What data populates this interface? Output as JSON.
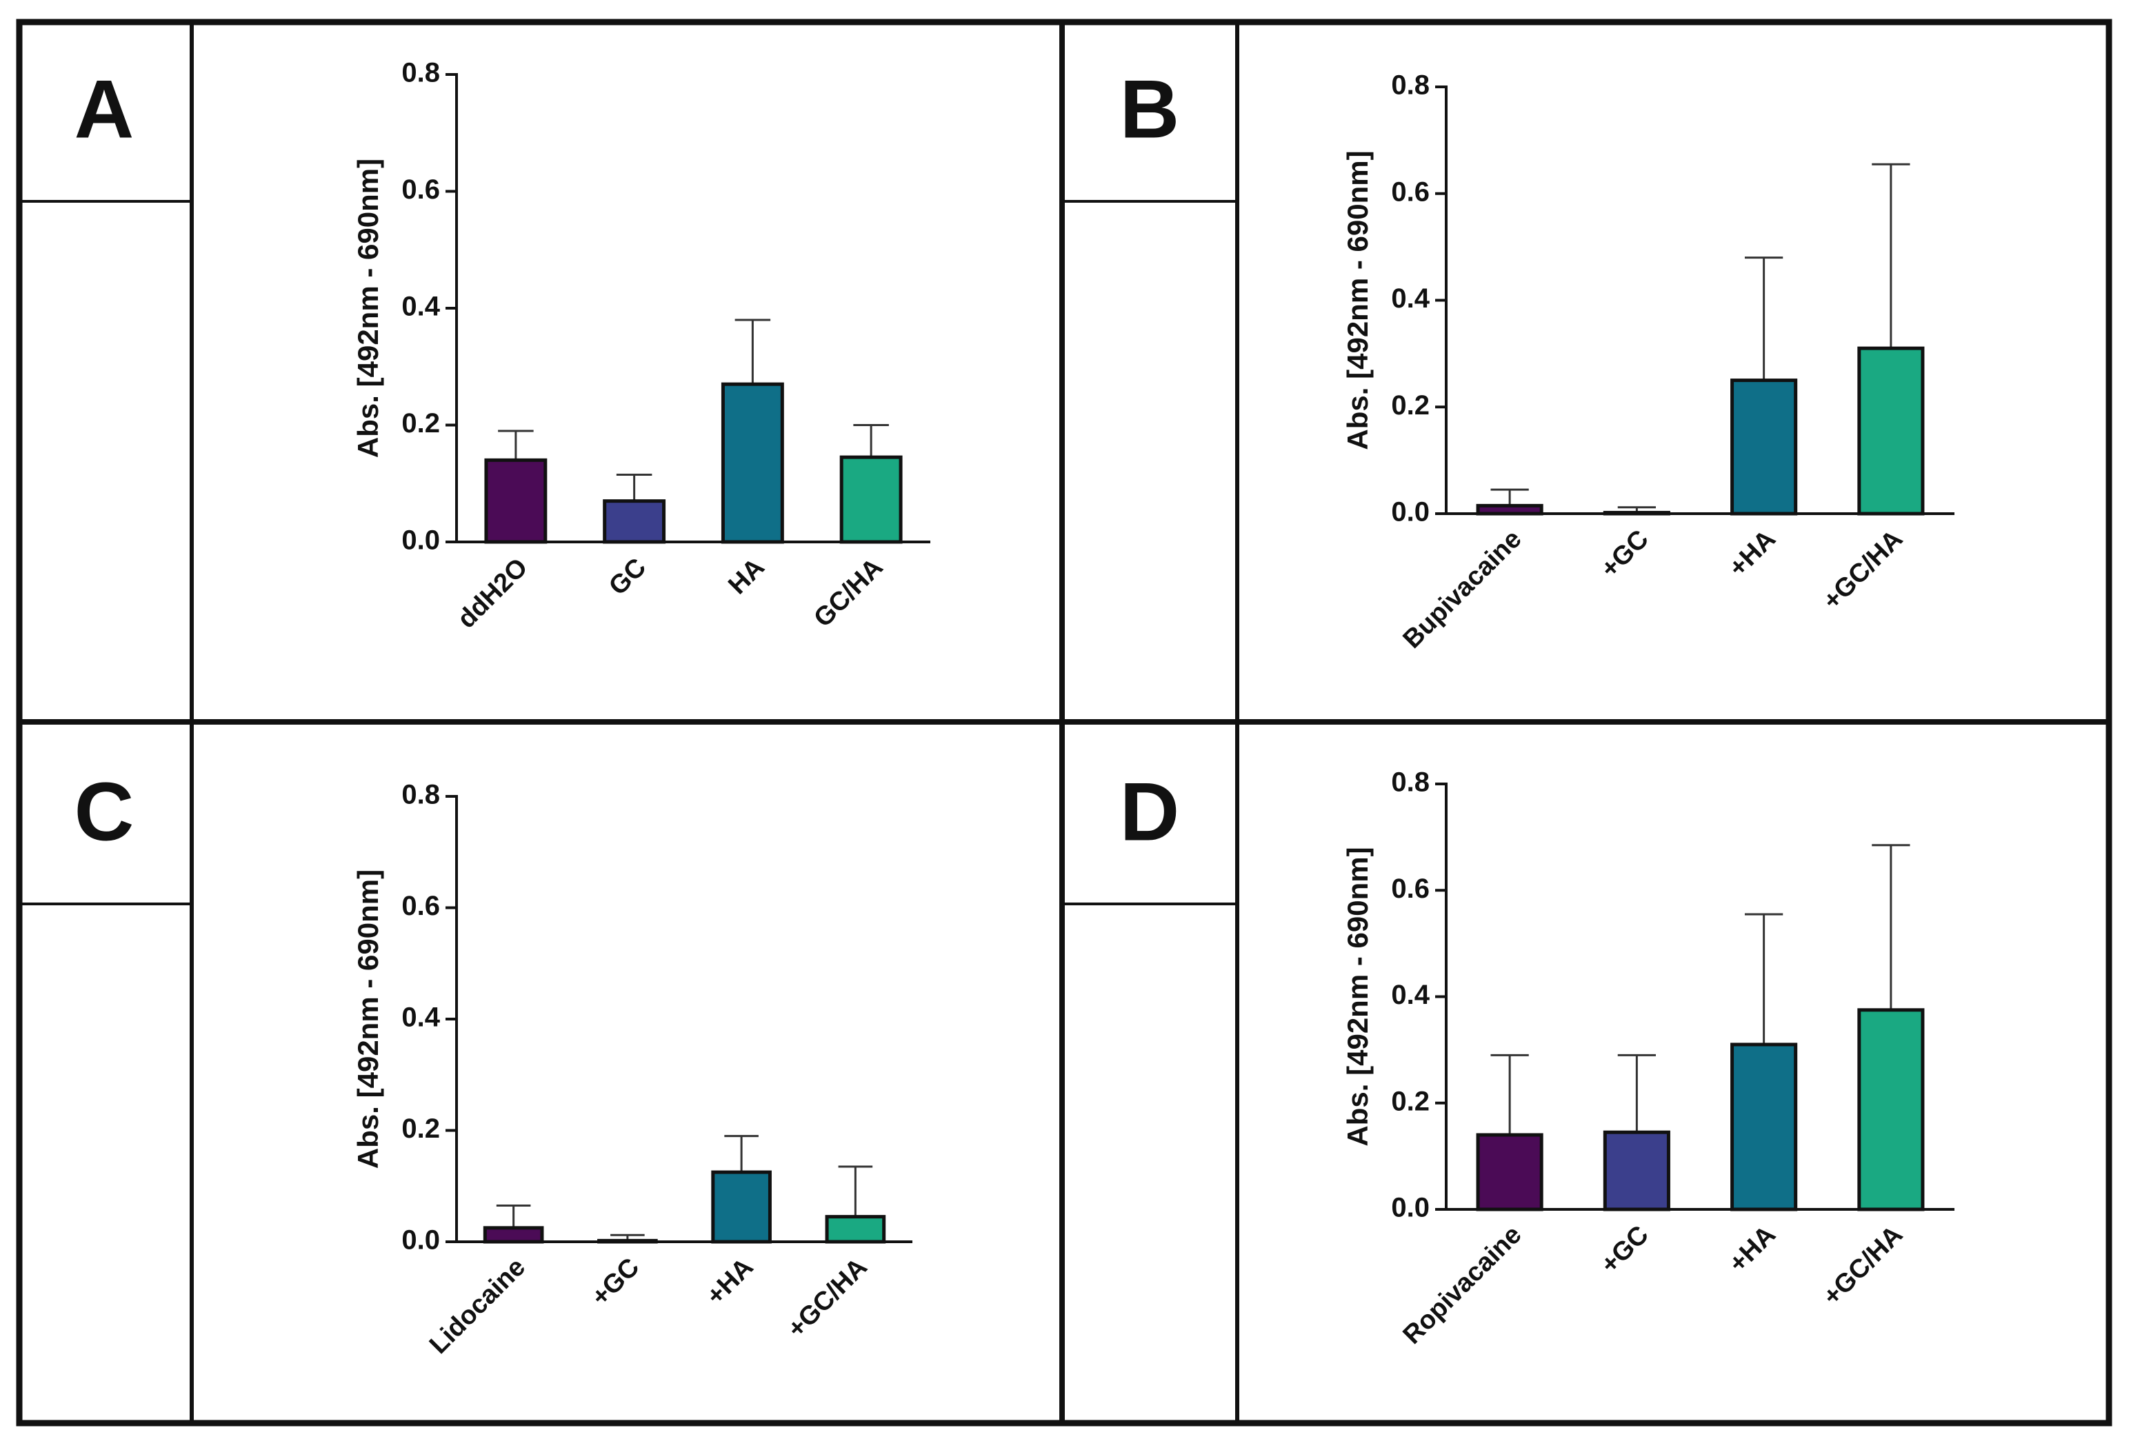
{
  "chart_data": [
    {
      "type": "bar",
      "panel": "A",
      "ylabel": "Abs. [492nm - 690nm]",
      "categories": [
        "ddH2O",
        "GC",
        "HA",
        "GC/HA"
      ],
      "values": [
        0.14,
        0.07,
        0.27,
        0.145
      ],
      "errors": [
        0.05,
        0.045,
        0.11,
        0.055
      ],
      "colors": [
        "#4b0b56",
        "#3b3f8c",
        "#0f6f88",
        "#1aa982"
      ],
      "ylim": [
        0,
        0.8
      ],
      "yticks": [
        {
          "value": 0,
          "label": "0.0"
        },
        {
          "value": 0.2,
          "label": "0.2"
        },
        {
          "value": 0.4,
          "label": "0.4"
        },
        {
          "value": 0.6,
          "label": "0.6"
        },
        {
          "value": 0.8,
          "label": "0.8"
        }
      ]
    },
    {
      "type": "bar",
      "panel": "B",
      "ylabel": "Abs. [492nm - 690nm]",
      "categories": [
        "Bupivacaine",
        "+GC",
        "+HA",
        "+GC/HA"
      ],
      "values": [
        0.015,
        0.002,
        0.25,
        0.31
      ],
      "errors": [
        0.03,
        0.01,
        0.23,
        0.345
      ],
      "colors": [
        "#4b0b56",
        "#3b3f8c",
        "#0f6f88",
        "#1aa982"
      ],
      "ylim": [
        0,
        0.8
      ],
      "yticks": [
        {
          "value": 0,
          "label": "0.0"
        },
        {
          "value": 0.2,
          "label": "0.2"
        },
        {
          "value": 0.4,
          "label": "0.4"
        },
        {
          "value": 0.6,
          "label": "0.6"
        },
        {
          "value": 0.8,
          "label": "0.8"
        }
      ]
    },
    {
      "type": "bar",
      "panel": "C",
      "ylabel": "Abs. [492nm - 690nm]",
      "categories": [
        "Lidocaine",
        "+GC",
        "+HA",
        "+GC/HA"
      ],
      "values": [
        0.025,
        0.002,
        0.125,
        0.045
      ],
      "errors": [
        0.04,
        0.01,
        0.065,
        0.09
      ],
      "colors": [
        "#4b0b56",
        "#3b3f8c",
        "#0f6f88",
        "#1aa982"
      ],
      "ylim": [
        0,
        0.8
      ],
      "yticks": [
        {
          "value": 0,
          "label": "0.0"
        },
        {
          "value": 0.2,
          "label": "0.2"
        },
        {
          "value": 0.4,
          "label": "0.4"
        },
        {
          "value": 0.6,
          "label": "0.6"
        },
        {
          "value": 0.8,
          "label": "0.8"
        }
      ]
    },
    {
      "type": "bar",
      "panel": "D",
      "ylabel": "Abs. [492nm - 690nm]",
      "categories": [
        "Ropivacaine",
        "+GC",
        "+HA",
        "+GC/HA"
      ],
      "values": [
        0.14,
        0.145,
        0.31,
        0.375
      ],
      "errors": [
        0.15,
        0.145,
        0.245,
        0.31
      ],
      "colors": [
        "#4b0b56",
        "#3b3f8c",
        "#0f6f88",
        "#1aa982"
      ],
      "ylim": [
        0,
        0.8
      ],
      "yticks": [
        {
          "value": 0,
          "label": "0.0"
        },
        {
          "value": 0.2,
          "label": "0.2"
        },
        {
          "value": 0.4,
          "label": "0.4"
        },
        {
          "value": 0.6,
          "label": "0.6"
        },
        {
          "value": 0.8,
          "label": "0.8"
        }
      ]
    }
  ]
}
